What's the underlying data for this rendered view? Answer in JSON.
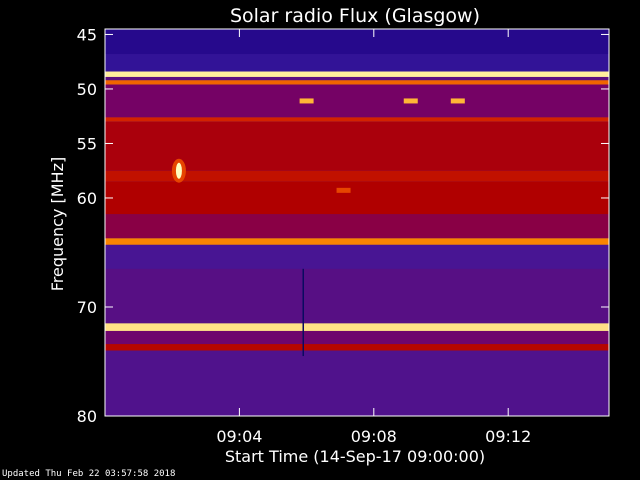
{
  "chart_data": {
    "type": "heatmap",
    "title": "Solar radio Flux (Glasgow)",
    "xlabel": "Start Time (14-Sep-17 09:00:00)",
    "ylabel": "Frequency [MHz]",
    "x_ticks": [
      "09:04",
      "09:08",
      "09:12"
    ],
    "x_tick_minutes": [
      4,
      8,
      12
    ],
    "x_range_minutes": [
      0,
      15
    ],
    "y_ticks": [
      45,
      50,
      55,
      60,
      70,
      80
    ],
    "y_range": [
      44.5,
      80
    ],
    "colormap": [
      "#1a0080",
      "#3c1aa0",
      "#7a0060",
      "#b00000",
      "#e03000",
      "#ff9a00",
      "#ffffc0"
    ],
    "bands": [
      {
        "f0": 44.5,
        "f1": 46.8,
        "intensity": 0.06
      },
      {
        "f0": 46.8,
        "f1": 48.4,
        "intensity": 0.12
      },
      {
        "f0": 48.4,
        "f1": 48.9,
        "intensity": 0.97
      },
      {
        "f0": 48.9,
        "f1": 49.2,
        "intensity": 0.25
      },
      {
        "f0": 49.2,
        "f1": 49.6,
        "intensity": 0.75
      },
      {
        "f0": 49.6,
        "f1": 52.6,
        "intensity": 0.32
      },
      {
        "f0": 52.6,
        "f1": 53.0,
        "intensity": 0.62
      },
      {
        "f0": 53.0,
        "f1": 57.5,
        "intensity": 0.48
      },
      {
        "f0": 57.5,
        "f1": 58.5,
        "intensity": 0.56
      },
      {
        "f0": 58.5,
        "f1": 61.5,
        "intensity": 0.5
      },
      {
        "f0": 61.5,
        "f1": 63.7,
        "intensity": 0.38
      },
      {
        "f0": 63.7,
        "f1": 64.3,
        "intensity": 0.8
      },
      {
        "f0": 64.3,
        "f1": 66.5,
        "intensity": 0.2
      },
      {
        "f0": 66.5,
        "f1": 71.5,
        "intensity": 0.24
      },
      {
        "f0": 71.5,
        "f1": 72.2,
        "intensity": 0.95
      },
      {
        "f0": 72.2,
        "f1": 73.4,
        "intensity": 0.3
      },
      {
        "f0": 73.4,
        "f1": 74.0,
        "intensity": 0.52
      },
      {
        "f0": 74.0,
        "f1": 80.0,
        "intensity": 0.22
      }
    ],
    "features": [
      {
        "kind": "burst",
        "minute": 2.2,
        "freq": 57.5,
        "intensity": 1.0
      },
      {
        "kind": "spot",
        "minute": 6.0,
        "freq": 51.1,
        "intensity": 0.88
      },
      {
        "kind": "spot",
        "minute": 9.1,
        "freq": 51.1,
        "intensity": 0.88
      },
      {
        "kind": "spot",
        "minute": 10.5,
        "freq": 51.1,
        "intensity": 0.88
      },
      {
        "kind": "spot",
        "minute": 7.1,
        "freq": 59.3,
        "intensity": 0.7
      },
      {
        "kind": "line",
        "minute": 5.9,
        "freq_from": 66.5,
        "freq_to": 74.5,
        "color": "#0a0a60"
      }
    ]
  },
  "footer": {
    "updated": "Updated Thu Feb 22 03:57:58 2018"
  }
}
